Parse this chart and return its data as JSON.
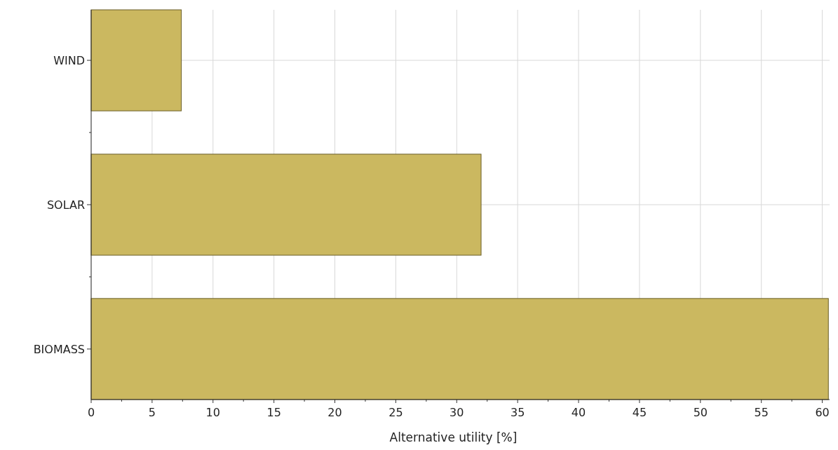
{
  "chart_data": {
    "type": "bar",
    "orientation": "horizontal",
    "categories": [
      "WIND",
      "SOLAR",
      "BIOMASS"
    ],
    "values": [
      7.4,
      32,
      60.5
    ],
    "color": "#cbb860",
    "xlabel": "Alternative utility [%]",
    "xlim": [
      0,
      60.6
    ],
    "xticks": [
      0,
      {
        "value": 2.5,
        "label": null
      },
      5,
      {
        "value": 7.5,
        "label": null
      },
      10,
      {
        "value": 12.5,
        "label": null
      },
      15,
      {
        "value": 17.5,
        "label": null
      },
      20,
      {
        "value": 22.5,
        "label": null
      },
      25,
      {
        "value": 27.5,
        "label": null
      },
      30,
      {
        "value": 32.5,
        "label": null
      },
      35,
      {
        "value": 37.5,
        "label": null
      },
      40,
      {
        "value": 42.5,
        "label": null
      },
      45,
      {
        "value": 47.5,
        "label": null
      },
      50,
      {
        "value": 52.5,
        "label": null
      },
      55,
      {
        "value": 57.5,
        "label": null
      },
      60
    ],
    "grid": true
  }
}
